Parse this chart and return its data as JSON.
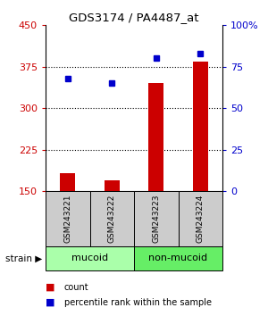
{
  "title": "GDS3174 / PA4487_at",
  "samples": [
    "GSM243221",
    "GSM243222",
    "GSM243223",
    "GSM243224"
  ],
  "counts": [
    182,
    170,
    345,
    385
  ],
  "percentiles": [
    68,
    65,
    80,
    83
  ],
  "ylim_left": [
    150,
    450
  ],
  "ylim_right": [
    0,
    100
  ],
  "yticks_left": [
    150,
    225,
    300,
    375,
    450
  ],
  "yticks_right": [
    0,
    25,
    50,
    75,
    100
  ],
  "ytick_labels_right": [
    "0",
    "25",
    "50",
    "75",
    "100%"
  ],
  "bar_color": "#cc0000",
  "dot_color": "#0000cc",
  "bar_baseline": 150,
  "groups": [
    {
      "label": "mucoid",
      "indices": [
        0,
        1
      ],
      "color": "#aaffaa"
    },
    {
      "label": "non-mucoid",
      "indices": [
        2,
        3
      ],
      "color": "#66ee66"
    }
  ],
  "legend_bar_label": "count",
  "legend_dot_label": "percentile rank within the sample",
  "title_color_left": "#cc0000",
  "title_color_right": "#0000cc",
  "label_box_color": "#cccccc",
  "x_positions": [
    0.5,
    1.5,
    2.5,
    3.5
  ],
  "bar_width": 0.35
}
